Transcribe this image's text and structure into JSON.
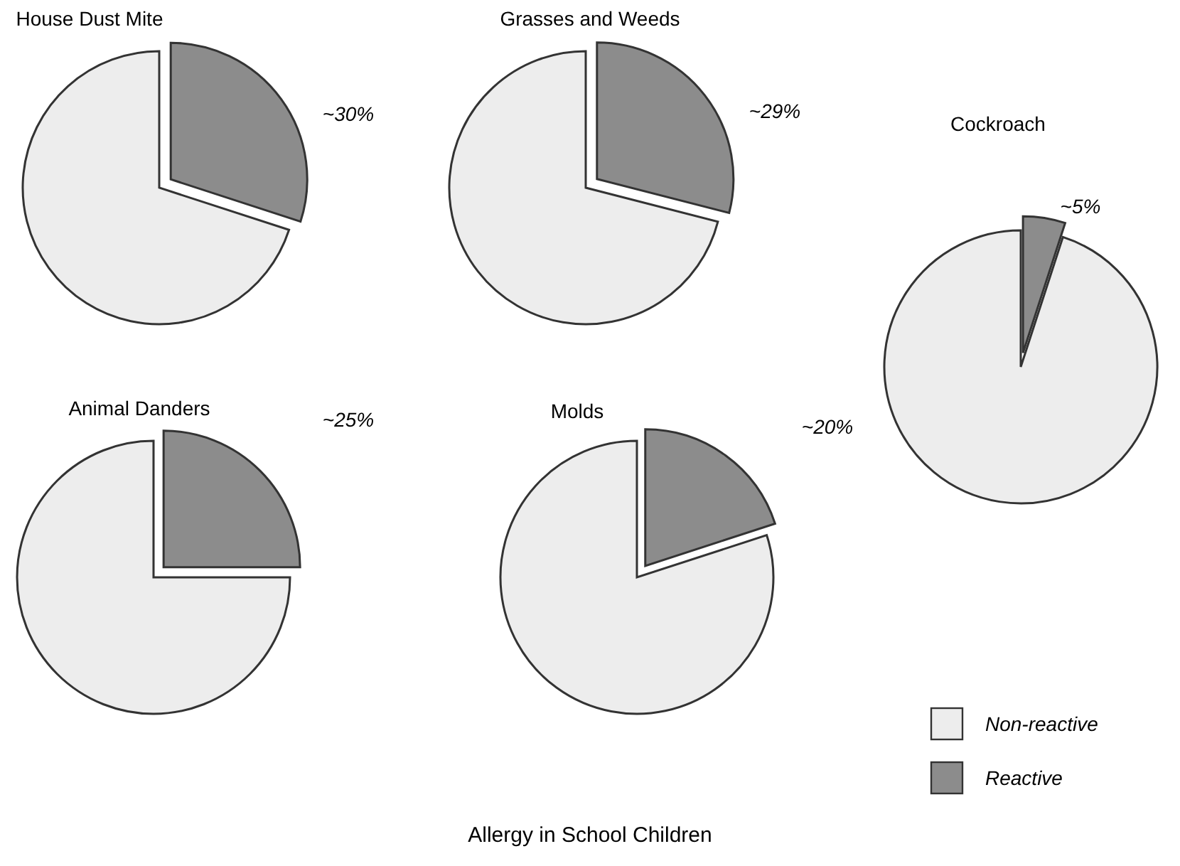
{
  "chart_data": [
    {
      "type": "pie",
      "title": "House Dust Mite",
      "values": [
        70,
        30
      ],
      "colors": [
        "#ededed",
        "#8c8c8c"
      ],
      "value_labels": [
        null,
        "~30%"
      ]
    },
    {
      "type": "pie",
      "title": "Grasses and Weeds",
      "values": [
        71,
        29
      ],
      "colors": [
        "#ededed",
        "#8c8c8c"
      ],
      "value_labels": [
        null,
        "~29%"
      ]
    },
    {
      "type": "pie",
      "title": "Cockroach",
      "categories": [
        "Non-reactive",
        "Reactive"
      ],
      "values": [
        95,
        5
      ],
      "colors": [
        "#ededed",
        "#8c8c8c"
      ],
      "value_labels": [
        null,
        "~5%"
      ],
      "legend": "bottom"
    },
    {
      "type": "pie",
      "title": "Animal Danders",
      "values": [
        75,
        25
      ],
      "colors": [
        "#ededed",
        "#8c8c8c"
      ],
      "value_labels": [
        null,
        "~25%"
      ]
    },
    {
      "type": "pie",
      "title": "Molds",
      "values": [
        80,
        20
      ],
      "colors": [
        "#ededed",
        "#8c8c8c"
      ],
      "value_labels": [
        null,
        "~20%"
      ]
    },
    {
      "type": "other",
      "title": "Allergy in School Children"
    }
  ]
}
